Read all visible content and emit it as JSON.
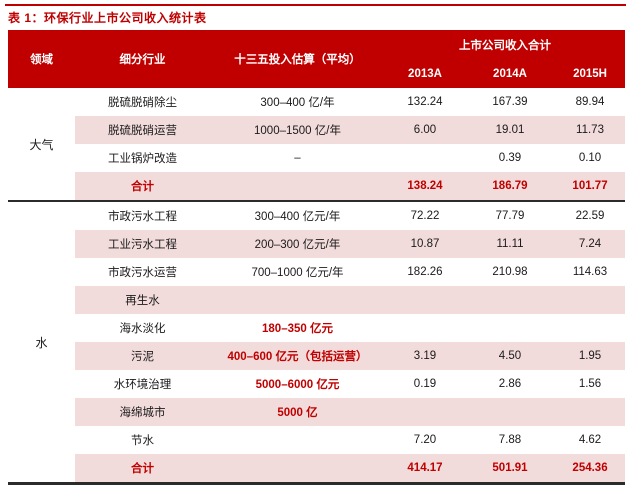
{
  "title": "表 1：环保行业上市公司收入统计表",
  "colors": {
    "header_bg": "#c00000",
    "row_pink": "#f2dcdb",
    "accent_red": "#c00000",
    "divider_dark": "#2b2b2b"
  },
  "header": {
    "domain": "领域",
    "subindustry": "细分行业",
    "estimate": "十三五投入估算（平均）",
    "revenue_group": "上市公司收入合计",
    "y2013": "2013A",
    "y2014": "2014A",
    "y2015": "2015H"
  },
  "sections": [
    {
      "label": "大气"
    },
    {
      "label": "水"
    }
  ],
  "rows": [
    {
      "sub": "脱硫脱硝除尘",
      "est": "300–400 亿/年",
      "v1": "132.24",
      "v2": "167.39",
      "v3": "89.94"
    },
    {
      "sub": "脱硫脱硝运营",
      "est": "1000–1500 亿/年",
      "v1": "6.00",
      "v2": "19.01",
      "v3": "11.73"
    },
    {
      "sub": "工业锅炉改造",
      "est": "–",
      "v1": "",
      "v2": "0.39",
      "v3": "0.10"
    },
    {
      "sub": "合计",
      "est": "",
      "v1": "138.24",
      "v2": "186.79",
      "v3": "101.77"
    },
    {
      "sub": "市政污水工程",
      "est": "300–400 亿元/年",
      "v1": "72.22",
      "v2": "77.79",
      "v3": "22.59"
    },
    {
      "sub": "工业污水工程",
      "est": "200–300 亿元/年",
      "v1": "10.87",
      "v2": "11.11",
      "v3": "7.24"
    },
    {
      "sub": "市政污水运营",
      "est": "700–1000 亿元/年",
      "v1": "182.26",
      "v2": "210.98",
      "v3": "114.63"
    },
    {
      "sub": "再生水",
      "est": "",
      "v1": "",
      "v2": "",
      "v3": ""
    },
    {
      "sub": "海水淡化",
      "est": "180–350 亿元",
      "v1": "",
      "v2": "",
      "v3": ""
    },
    {
      "sub": "污泥",
      "est": "400–600 亿元（包括运营）",
      "v1": "3.19",
      "v2": "4.50",
      "v3": "1.95"
    },
    {
      "sub": "水环境治理",
      "est": "5000–6000 亿元",
      "v1": "0.19",
      "v2": "2.86",
      "v3": "1.56"
    },
    {
      "sub": "海绵城市",
      "est": "5000 亿",
      "v1": "",
      "v2": "",
      "v3": ""
    },
    {
      "sub": "节水",
      "est": "",
      "v1": "7.20",
      "v2": "7.88",
      "v3": "4.62"
    },
    {
      "sub": "合计",
      "est": "",
      "v1": "414.17",
      "v2": "501.91",
      "v3": "254.36"
    }
  ]
}
